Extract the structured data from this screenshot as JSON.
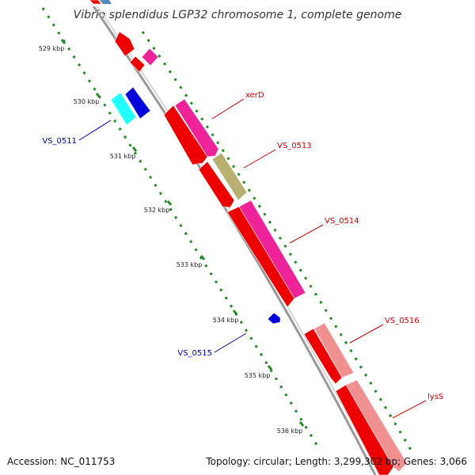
{
  "title": "Vibrio splendidus LGP32 chromosome 1, complete genome",
  "footer": {
    "accession": "Accession: NC_011753",
    "topology": "Topology: circular; Length: 3,299,302 bp; Genes: 3,066"
  },
  "ticks": [
    {
      "label": "529 kbp"
    },
    {
      "label": "530 kbp"
    },
    {
      "label": "531 kbp"
    },
    {
      "label": "532 kbp"
    },
    {
      "label": "533 kbp"
    },
    {
      "label": "534 kbp"
    },
    {
      "label": "535 kbp"
    },
    {
      "label": "536 kbp"
    }
  ],
  "gene_labels": [
    {
      "name": "xerD",
      "color": "#cc0000"
    },
    {
      "name": "VS_0513",
      "color": "#cc0000"
    },
    {
      "name": "VS_0514",
      "color": "#cc0000"
    },
    {
      "name": "VS_0516",
      "color": "#cc0000"
    },
    {
      "name": "lysS",
      "color": "#cc0000"
    },
    {
      "name": "VS_0511",
      "color": "#0000aa"
    },
    {
      "name": "VS_0515",
      "color": "#0000aa"
    }
  ],
  "colors": {
    "backbone": "#999999",
    "cds": "#ee0000",
    "gene": "#ee2299",
    "rna_light": "#f09090",
    "misc": "#b8b070",
    "reverse_cds": "#0000dd",
    "reverse_gene": "#22ffff",
    "tick_dots": "#228822"
  }
}
